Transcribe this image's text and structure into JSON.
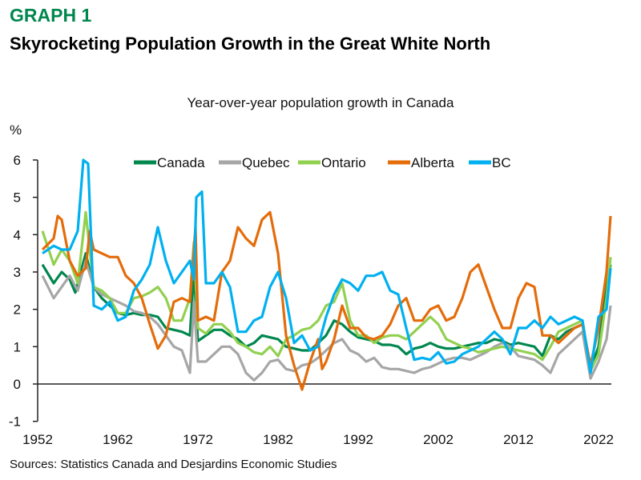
{
  "header": {
    "graph_label": "GRAPH 1",
    "headline": "Skyrocketing Population Growth in the Great White North"
  },
  "footer": {
    "sources": "Sources: Statistics Canada and Desjardins Economic Studies"
  },
  "chart_data": {
    "type": "line",
    "title": "Year-over-year population growth in Canada",
    "ylabel": "%",
    "xlabel": "",
    "ylim": [
      -1,
      6
    ],
    "xlim": [
      1952,
      2024
    ],
    "yticks": [
      "-1",
      "0",
      "1",
      "2",
      "3",
      "4",
      "5",
      "6"
    ],
    "xticks": [
      "1952",
      "1962",
      "1972",
      "1982",
      "1992",
      "2002",
      "2012",
      "2022"
    ],
    "grid": false,
    "legend_position": "top",
    "series": [
      {
        "name": "Canada",
        "color": "#00874e",
        "x": [
          1952.6,
          1954,
          1955,
          1956,
          1956.7,
          1958,
          1959,
          1960,
          1961,
          1962,
          1963,
          1964,
          1965,
          1966,
          1967,
          1968,
          1969,
          1970,
          1971,
          1971.5,
          1972,
          1973,
          1974,
          1975,
          1976,
          1977,
          1978,
          1979,
          1980,
          1981,
          1982,
          1983,
          1984,
          1985,
          1986,
          1987,
          1988,
          1989,
          1990,
          1991,
          1992,
          1993,
          1994,
          1995,
          1996,
          1997,
          1998,
          1999,
          2000,
          2001,
          2002,
          2003,
          2004,
          2005,
          2006,
          2007,
          2008,
          2009,
          2010,
          2011,
          2012,
          2013,
          2014,
          2015,
          2016,
          2017,
          2018,
          2019,
          2020,
          2021,
          2022,
          2023,
          2023.5
        ],
        "y": [
          3.2,
          2.7,
          3.0,
          2.8,
          2.45,
          3.5,
          2.6,
          2.3,
          2.1,
          1.9,
          1.85,
          1.9,
          1.85,
          1.85,
          1.8,
          1.5,
          1.45,
          1.4,
          1.3,
          3.0,
          1.15,
          1.3,
          1.45,
          1.45,
          1.3,
          1.2,
          1.0,
          1.1,
          1.3,
          1.25,
          1.2,
          1.0,
          0.95,
          0.9,
          0.9,
          1.1,
          1.3,
          1.7,
          1.6,
          1.4,
          1.25,
          1.2,
          1.15,
          1.05,
          1.05,
          1.0,
          0.8,
          0.95,
          1.0,
          1.1,
          1.0,
          0.95,
          0.95,
          1.0,
          1.05,
          1.1,
          1.1,
          1.2,
          1.15,
          1.05,
          1.1,
          1.05,
          1.0,
          0.75,
          1.3,
          1.2,
          1.4,
          1.5,
          1.6,
          0.4,
          1.0,
          2.6,
          3.2
        ]
      },
      {
        "name": "Quebec",
        "color": "#a6a6a6",
        "x": [
          1952.6,
          1954,
          1955,
          1956,
          1957,
          1958,
          1959,
          1960,
          1961,
          1962,
          1963,
          1964,
          1965,
          1966,
          1967,
          1968,
          1969,
          1970,
          1971,
          1971.5,
          1972,
          1973,
          1974,
          1975,
          1976,
          1977,
          1978,
          1979,
          1980,
          1981,
          1982,
          1983,
          1984,
          1985,
          1986,
          1987,
          1988,
          1989,
          1990,
          1991,
          1992,
          1993,
          1994,
          1995,
          1996,
          1997,
          1998,
          1999,
          2000,
          2001,
          2002,
          2003,
          2004,
          2005,
          2006,
          2007,
          2008,
          2009,
          2010,
          2011,
          2012,
          2013,
          2014,
          2015,
          2016,
          2017,
          2018,
          2019,
          2020,
          2021,
          2022,
          2023,
          2023.5
        ],
        "y": [
          2.9,
          2.3,
          2.6,
          2.9,
          2.5,
          3.3,
          2.6,
          2.4,
          2.3,
          2.2,
          2.1,
          1.95,
          1.9,
          1.8,
          1.6,
          1.3,
          1.0,
          0.9,
          0.3,
          2.2,
          0.6,
          0.6,
          0.8,
          1.0,
          1.0,
          0.8,
          0.3,
          0.1,
          0.3,
          0.6,
          0.65,
          0.4,
          0.35,
          0.5,
          0.55,
          0.7,
          0.9,
          1.1,
          1.2,
          0.9,
          0.8,
          0.6,
          0.7,
          0.45,
          0.4,
          0.4,
          0.35,
          0.3,
          0.4,
          0.45,
          0.55,
          0.65,
          0.7,
          0.7,
          0.65,
          0.75,
          0.85,
          1.0,
          1.1,
          1.0,
          0.75,
          0.7,
          0.65,
          0.5,
          0.3,
          0.8,
          1.0,
          1.2,
          1.4,
          0.15,
          0.6,
          1.2,
          2.1
        ]
      },
      {
        "name": "Ontario",
        "color": "#92d050",
        "x": [
          1952.6,
          1954,
          1955,
          1956,
          1957,
          1958,
          1959,
          1960,
          1961,
          1962,
          1963,
          1964,
          1965,
          1966,
          1967,
          1968,
          1969,
          1970,
          1971,
          1971.5,
          1972,
          1973,
          1974,
          1975,
          1976,
          1977,
          1978,
          1979,
          1980,
          1981,
          1982,
          1983,
          1984,
          1985,
          1986,
          1987,
          1988,
          1989,
          1990,
          1991,
          1992,
          1993,
          1994,
          1995,
          1996,
          1997,
          1998,
          1999,
          2000,
          2001,
          2002,
          2003,
          2004,
          2005,
          2006,
          2007,
          2008,
          2009,
          2010,
          2011,
          2012,
          2013,
          2014,
          2015,
          2016,
          2017,
          2018,
          2019,
          2020,
          2021,
          2022,
          2023,
          2023.5
        ],
        "y": [
          4.1,
          3.2,
          3.6,
          3.3,
          2.7,
          4.6,
          2.6,
          2.5,
          2.3,
          1.9,
          1.9,
          2.3,
          2.35,
          2.45,
          2.6,
          2.3,
          1.7,
          1.7,
          2.3,
          3.8,
          1.5,
          1.35,
          1.6,
          1.6,
          1.4,
          1.1,
          1.0,
          0.85,
          0.8,
          1.0,
          0.75,
          1.2,
          1.3,
          1.45,
          1.5,
          1.7,
          2.1,
          2.2,
          2.7,
          1.7,
          1.3,
          1.3,
          1.1,
          1.25,
          1.3,
          1.3,
          1.2,
          1.4,
          1.6,
          1.8,
          1.6,
          1.2,
          1.1,
          1.0,
          0.95,
          0.85,
          0.9,
          0.95,
          1.0,
          0.95,
          0.9,
          0.85,
          0.8,
          0.65,
          1.0,
          1.4,
          1.5,
          1.6,
          1.7,
          0.35,
          0.8,
          2.3,
          3.4
        ]
      },
      {
        "name": "Alberta",
        "color": "#e46c0a",
        "x": [
          1952.6,
          1954,
          1954.5,
          1955,
          1956,
          1957,
          1958,
          1958.5,
          1959,
          1960,
          1961,
          1962,
          1963,
          1964,
          1965,
          1966,
          1967,
          1968,
          1969,
          1970,
          1971,
          1971.7,
          1972,
          1973,
          1974,
          1975,
          1976,
          1977,
          1978,
          1979,
          1980,
          1981,
          1982,
          1983,
          1984,
          1985,
          1986,
          1987,
          1987.5,
          1988,
          1989,
          1990,
          1991,
          1992,
          1993,
          1994,
          1995,
          1996,
          1997,
          1998,
          1999,
          2000,
          2001,
          2002,
          2003,
          2004,
          2005,
          2006,
          2007,
          2008,
          2009,
          2010,
          2011,
          2012,
          2013,
          2014,
          2015,
          2016,
          2017,
          2018,
          2019,
          2020,
          2021,
          2022,
          2023,
          2023.5
        ],
        "y": [
          3.6,
          3.9,
          4.5,
          4.4,
          3.3,
          2.9,
          3.1,
          4.1,
          3.6,
          3.5,
          3.4,
          3.4,
          2.9,
          2.7,
          2.3,
          1.6,
          0.95,
          1.3,
          2.2,
          2.3,
          2.2,
          4.2,
          1.7,
          1.8,
          1.7,
          3.0,
          3.3,
          4.2,
          3.9,
          3.7,
          4.4,
          4.6,
          3.5,
          1.3,
          0.5,
          -0.15,
          0.6,
          1.2,
          0.4,
          0.6,
          1.2,
          2.1,
          1.5,
          1.5,
          1.25,
          1.2,
          1.3,
          1.6,
          2.1,
          2.3,
          1.7,
          1.7,
          2.0,
          2.1,
          1.7,
          1.8,
          2.3,
          3.0,
          3.2,
          2.6,
          2.0,
          1.5,
          1.5,
          2.3,
          2.7,
          2.6,
          1.3,
          1.3,
          1.1,
          1.3,
          1.5,
          1.6,
          0.5,
          1.5,
          3.0,
          4.5
        ]
      },
      {
        "name": "BC",
        "color": "#00b0f0",
        "x": [
          1952.6,
          1954,
          1955,
          1956,
          1957,
          1957.7,
          1958.3,
          1959,
          1960,
          1961,
          1962,
          1963,
          1964,
          1965,
          1966,
          1967,
          1968,
          1969,
          1970,
          1971,
          1971.5,
          1971.8,
          1972.5,
          1973,
          1974,
          1975,
          1976,
          1977,
          1978,
          1979,
          1980,
          1981,
          1982,
          1983,
          1984,
          1985,
          1986,
          1987,
          1988,
          1989,
          1990,
          1991,
          1992,
          1993,
          1994,
          1995,
          1996,
          1997,
          1998,
          1999,
          2000,
          2001,
          2002,
          2003,
          2004,
          2005,
          2006,
          2007,
          2008,
          2009,
          2010,
          2011,
          2012,
          2013,
          2014,
          2015,
          2016,
          2017,
          2018,
          2019,
          2020,
          2021,
          2022,
          2023,
          2023.5
        ],
        "y": [
          3.5,
          3.7,
          3.6,
          3.6,
          4.1,
          6.0,
          5.9,
          2.1,
          2.0,
          2.2,
          1.7,
          1.8,
          2.5,
          2.8,
          3.2,
          4.2,
          3.3,
          2.7,
          3.0,
          3.3,
          2.8,
          5.0,
          5.15,
          2.7,
          2.7,
          3.0,
          2.6,
          1.4,
          1.4,
          1.7,
          1.8,
          2.6,
          3.0,
          2.3,
          1.1,
          1.3,
          0.9,
          1.0,
          1.8,
          2.4,
          2.8,
          2.7,
          2.5,
          2.9,
          2.9,
          3.0,
          2.5,
          2.4,
          1.5,
          0.65,
          0.7,
          0.65,
          0.85,
          0.55,
          0.6,
          0.8,
          0.9,
          1.0,
          1.2,
          1.4,
          1.2,
          0.8,
          1.5,
          1.5,
          1.7,
          1.5,
          1.8,
          1.6,
          1.7,
          1.8,
          1.7,
          0.3,
          1.8,
          2.0,
          3.1
        ]
      }
    ]
  }
}
